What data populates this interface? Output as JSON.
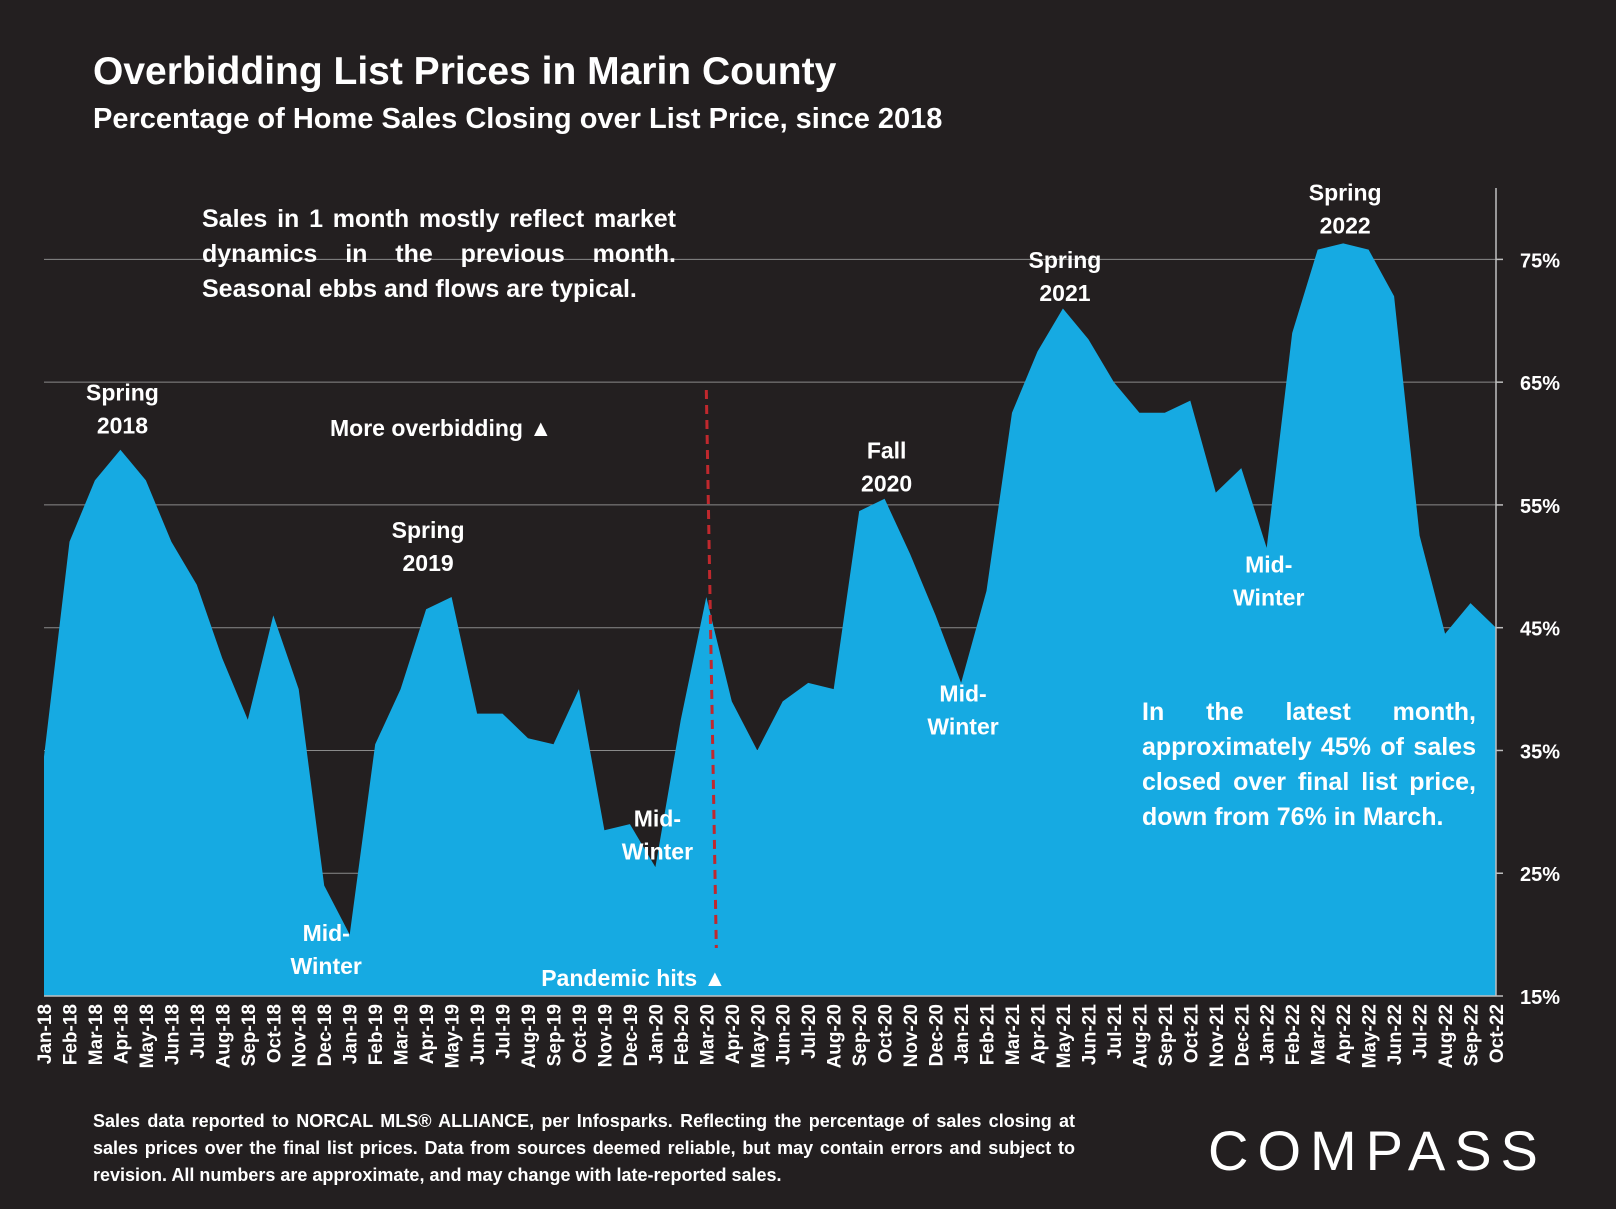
{
  "header": {
    "title": "Overbidding List Prices in Marin County",
    "subtitle": "Percentage of Home Sales Closing over List Price, since 2018"
  },
  "notes": {
    "top": "Sales in 1 month mostly reflect market dynamics in the previous month. Seasonal ebbs and flows are typical.",
    "latest": "In the latest month, approximately 45% of sales closed over final list price, down from 76% in March."
  },
  "footer": {
    "source": "Sales data reported to NORCAL MLS® ALLIANCE, per Infosparks. Reflecting the percentage of sales closing at sales prices over the final list prices. Data from sources deemed reliable, but may contain errors and subject to revision. All numbers are approximate, and may change with late-reported sales.",
    "logo": "COMPASS"
  },
  "colors": {
    "background": "#231f20",
    "area": "#16aae2",
    "marker_line": "#c0282d",
    "text": "#ffffff"
  },
  "chart_data": {
    "type": "area",
    "x": [
      "Jan-18",
      "Feb-18",
      "Mar-18",
      "Apr-18",
      "May-18",
      "Jun-18",
      "Jul-18",
      "Aug-18",
      "Sep-18",
      "Oct-18",
      "Nov-18",
      "Dec-18",
      "Jan-19",
      "Feb-19",
      "Mar-19",
      "Apr-19",
      "May-19",
      "Jun-19",
      "Jul-19",
      "Aug-19",
      "Sep-19",
      "Oct-19",
      "Nov-19",
      "Dec-19",
      "Jan-20",
      "Feb-20",
      "Mar-20",
      "Apr-20",
      "May-20",
      "Jun-20",
      "Jul-20",
      "Aug-20",
      "Sep-20",
      "Oct-20",
      "Nov-20",
      "Dec-20",
      "Jan-21",
      "Feb-21",
      "Mar-21",
      "Apr-21",
      "May-21",
      "Jun-21",
      "Jul-21",
      "Aug-21",
      "Sep-21",
      "Oct-21",
      "Nov-21",
      "Dec-21",
      "Jan-22",
      "Feb-22",
      "Mar-22",
      "Apr-22",
      "May-22",
      "Jun-22",
      "Jul-22",
      "Aug-22",
      "Sep-22",
      "Oct-22"
    ],
    "values": [
      34.5,
      52.0,
      57.0,
      59.5,
      57.0,
      52.0,
      48.5,
      42.5,
      37.5,
      46.0,
      40.0,
      24.0,
      20.0,
      35.5,
      40.0,
      46.5,
      47.5,
      38.0,
      38.0,
      36.0,
      35.5,
      40.0,
      28.5,
      29.0,
      25.5,
      37.5,
      47.5,
      39.0,
      35.0,
      39.0,
      40.5,
      40.0,
      54.5,
      55.5,
      51.0,
      46.0,
      40.5,
      48.0,
      62.5,
      67.5,
      71.0,
      68.5,
      65.0,
      62.5,
      62.5,
      63.5,
      56.0,
      58.0,
      51.5,
      69.0,
      75.8,
      76.3,
      75.8,
      72.0,
      52.5,
      44.5,
      47.0,
      45.0
    ],
    "ylim": [
      15,
      80
    ],
    "yticks": [
      15,
      25,
      35,
      45,
      55,
      65,
      75
    ],
    "ytick_labels": [
      "15%",
      "25%",
      "35%",
      "45%",
      "55%",
      "65%",
      "75%"
    ],
    "grid": true,
    "y_axis_side": "right",
    "annotations": [
      {
        "line1": "Spring",
        "line2": "2018",
        "x": "Apr-18",
        "y": 63.5
      },
      {
        "line1": "Mid-",
        "line2": "Winter",
        "x": "Dec-18",
        "y": 19.5
      },
      {
        "line1": "Spring",
        "line2": "2019",
        "x": "Apr-19",
        "y": 52.3
      },
      {
        "line1": "Mid-",
        "line2": "Winter",
        "x": "Jan-20",
        "y": 28.8
      },
      {
        "line1": "Fall",
        "line2": "2020",
        "x": "Oct-20",
        "y": 58.8
      },
      {
        "line1": "Mid-",
        "line2": "Winter",
        "x": "Jan-21",
        "y": 39.0
      },
      {
        "line1": "Spring",
        "line2": "2021",
        "x": "May-21",
        "y": 74.3
      },
      {
        "line1": "Mid-",
        "line2": "Winter",
        "x": "Jan-22",
        "y": 49.5
      },
      {
        "line1": "Spring",
        "line2": "2022",
        "x": "Apr-22",
        "y": 79.8
      }
    ],
    "more_overbidding_label": "More overbidding ▲",
    "pandemic_label": "Pandemic hits ▲",
    "pandemic_x": "Mar-20"
  }
}
